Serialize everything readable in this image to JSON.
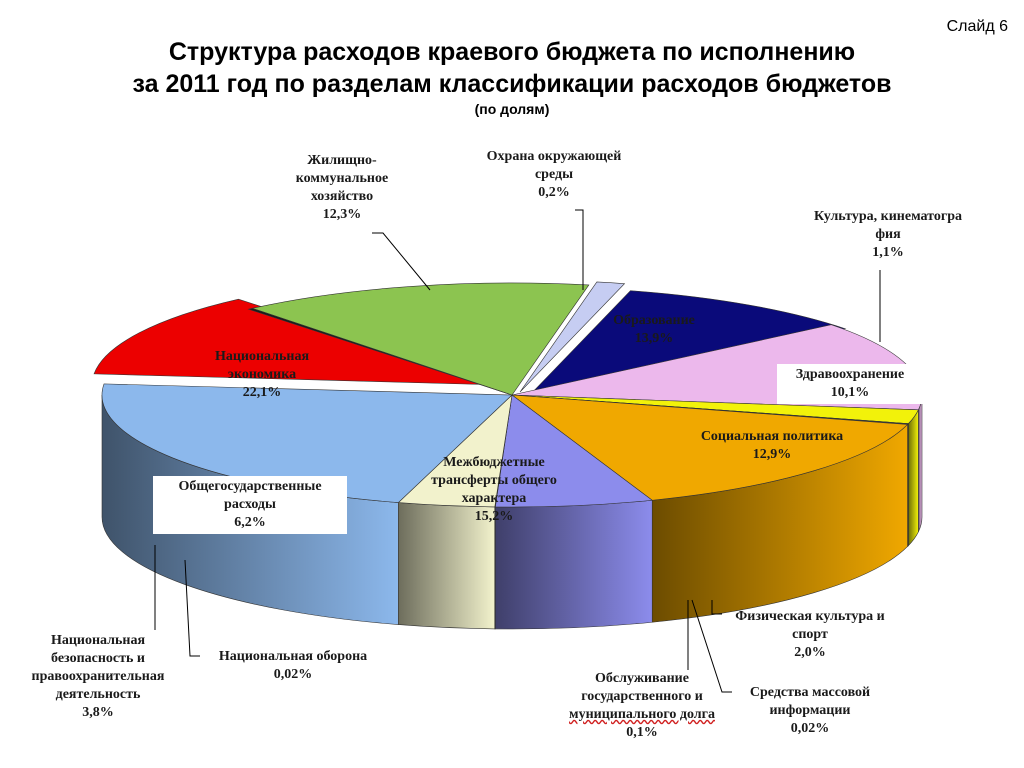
{
  "slide": {
    "number_label": "Слайд 6"
  },
  "title": {
    "line1": "Структура расходов краевого бюджета по исполнению",
    "line2": "за 2011 год по разделам классификации расходов бюджетов",
    "subtitle": "(по долям)"
  },
  "chart_data": {
    "type": "pie",
    "style": "3d-exploded",
    "unit": "%",
    "slices": [
      {
        "id": "culture",
        "lines": [
          "Культура,  кинематогра",
          "фия"
        ],
        "value": 1.1,
        "value_label": "1,1%",
        "color": "#c6cdf2"
      },
      {
        "id": "health",
        "lines": [
          "Здравоохранение"
        ],
        "value": 10.1,
        "value_label": "10,1%",
        "color": "#0a0a7a"
      },
      {
        "id": "social",
        "lines": [
          "Социальная политика"
        ],
        "value": 12.9,
        "value_label": "12,9%",
        "color": "#ecb8ec"
      },
      {
        "id": "sport",
        "lines": [
          "Физическая культура и",
          "спорт"
        ],
        "value": 2.0,
        "value_label": "2,0%",
        "color": "#f2f20a"
      },
      {
        "id": "media",
        "lines": [
          "Средства массовой",
          "информации"
        ],
        "value": 0.02,
        "value_label": "0,02%",
        "color": "#3c8c3c"
      },
      {
        "id": "debt",
        "lines": [
          "Обслуживание",
          "государственного и",
          "муниципального долга"
        ],
        "value": 0.1,
        "value_label": "0,1%",
        "color": "#4a6aa0"
      },
      {
        "id": "transfers",
        "lines": [
          "Межбюджетные",
          "трансферты общего",
          "характера"
        ],
        "value": 15.2,
        "value_label": "15,2%",
        "color": "#f0a800"
      },
      {
        "id": "general",
        "lines": [
          "Общегосударственные",
          "расходы"
        ],
        "value": 6.2,
        "value_label": "6,2%",
        "color": "#8c8cec"
      },
      {
        "id": "defense",
        "lines": [
          "Национальная оборона"
        ],
        "value": 0.02,
        "value_label": "0,02%",
        "color": "#5050a0"
      },
      {
        "id": "security",
        "lines": [
          "Национальная",
          "безопасность и",
          "правоохранительная",
          "деятельность"
        ],
        "value": 3.8,
        "value_label": "3,8%",
        "color": "#f2f2cc"
      },
      {
        "id": "economy",
        "lines": [
          "Национальная",
          "экономика"
        ],
        "value": 22.1,
        "value_label": "22,1%",
        "color": "#8cb8ec"
      },
      {
        "id": "housing",
        "lines": [
          "Жилищно-",
          "коммунальное",
          "хозяйство"
        ],
        "value": 12.3,
        "value_label": "12,3%",
        "color": "#ec0000"
      },
      {
        "id": "environment",
        "lines": [
          "Охрана окружающей",
          "среды"
        ],
        "value": 0.2,
        "value_label": "0,2%",
        "color": "#1a1a1a"
      },
      {
        "id": "education",
        "lines": [
          "Образование"
        ],
        "value": 13.9,
        "value_label": "13,9%",
        "color": "#8cc450"
      }
    ]
  }
}
